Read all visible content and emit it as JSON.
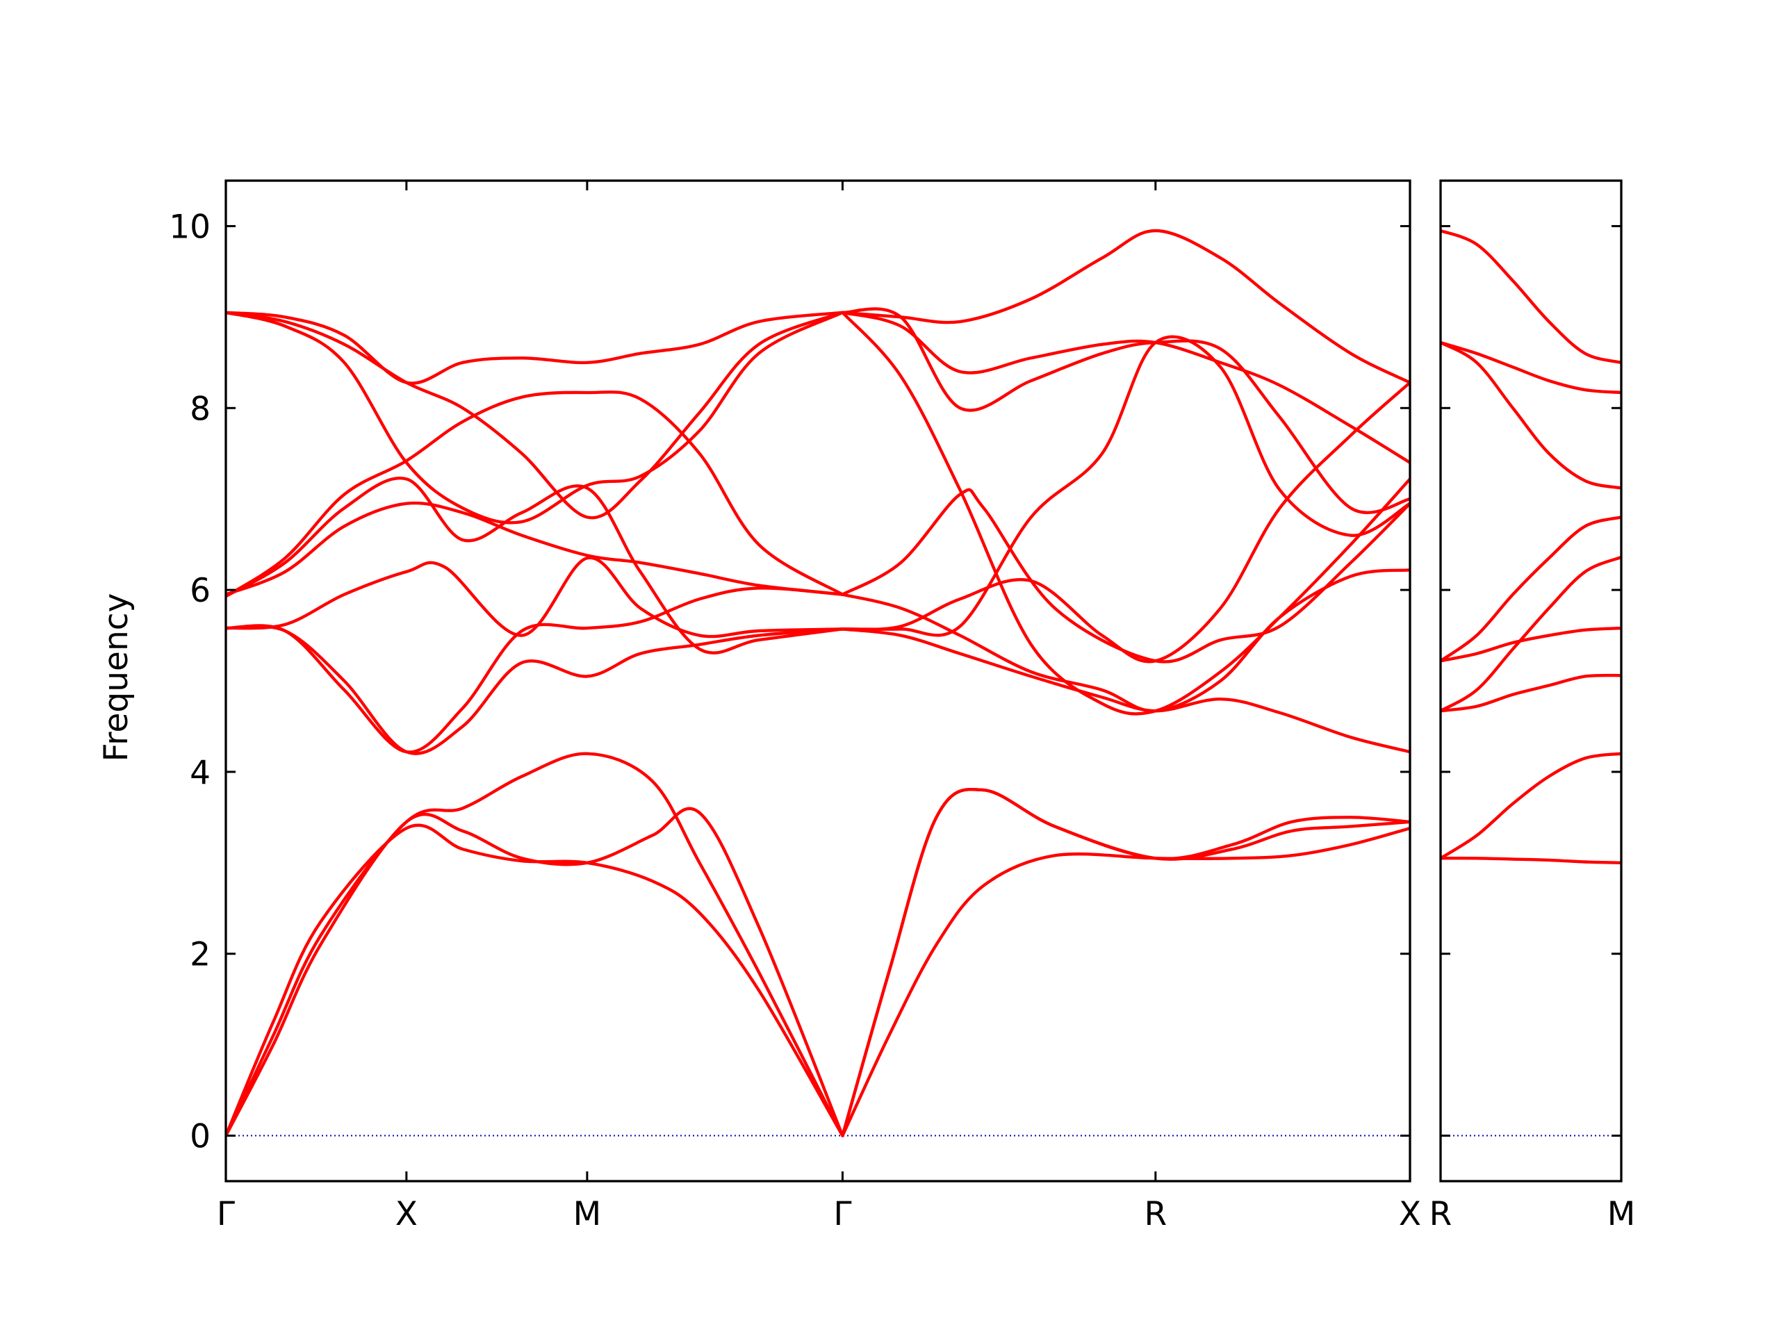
{
  "chart_data": {
    "type": "line",
    "ylabel": "Frequency",
    "ylim": [
      -0.5,
      10.5
    ],
    "yticks": [
      0,
      2,
      4,
      6,
      8,
      10
    ],
    "ytick_labels": [
      "0",
      "2",
      "4",
      "6",
      "8",
      "10"
    ],
    "grid": false,
    "colors": {
      "band": "#ff0000",
      "zero_line": "#0000bb"
    },
    "panels": [
      {
        "name": "main",
        "xlim": [
          0,
          1
        ],
        "ticks": [
          {
            "pos": 0.0,
            "label": "Γ"
          },
          {
            "pos": 0.1525,
            "label": "X"
          },
          {
            "pos": 0.3051,
            "label": "M"
          },
          {
            "pos": 0.5208,
            "label": "Γ"
          },
          {
            "pos": 0.7851,
            "label": "R"
          },
          {
            "pos": 1.0,
            "label": "X"
          }
        ],
        "series": [
          {
            "x": [
              0,
              0.04,
              0.08,
              0.1525,
              0.2,
              0.25,
              0.3051,
              0.36,
              0.4,
              0.45,
              0.5208
            ],
            "y": [
              0,
              1.25,
              2.35,
              3.38,
              3.15,
              3.02,
              3.0,
              2.8,
              2.45,
              1.6,
              0
            ]
          },
          {
            "x": [
              0,
              0.04,
              0.08,
              0.1525,
              0.2,
              0.25,
              0.3051,
              0.36,
              0.4,
              0.45,
              0.5208
            ],
            "y": [
              0,
              1.0,
              2.1,
              3.45,
              3.35,
              3.05,
              3.0,
              3.3,
              3.55,
              2.3,
              0
            ]
          },
          {
            "x": [
              0,
              0.04,
              0.08,
              0.1525,
              0.2,
              0.25,
              0.3051,
              0.36,
              0.4,
              0.45,
              0.5208
            ],
            "y": [
              0,
              1.1,
              2.2,
              3.45,
              3.6,
              3.95,
              4.2,
              3.9,
              3.0,
              1.8,
              0
            ]
          },
          {
            "x": [
              0.5208,
              0.56,
              0.6,
              0.64,
              0.7,
              0.7851,
              0.85,
              0.9,
              0.95,
              1.0
            ],
            "y": [
              0,
              1.1,
              2.1,
              2.75,
              3.08,
              3.05,
              3.05,
              3.08,
              3.2,
              3.38
            ]
          },
          {
            "x": [
              0.5208,
              0.56,
              0.6,
              0.64,
              0.7,
              0.7851,
              0.85,
              0.9,
              0.95,
              1.0
            ],
            "y": [
              0,
              1.8,
              3.5,
              3.8,
              3.4,
              3.05,
              3.15,
              3.35,
              3.4,
              3.45
            ]
          },
          {
            "x": [
              0.5208,
              0.56,
              0.6,
              0.64,
              0.7,
              0.7851,
              0.85,
              0.9,
              0.95,
              1.0
            ],
            "y": [
              0,
              1.8,
              3.5,
              3.8,
              3.4,
              3.05,
              3.2,
              3.45,
              3.5,
              3.45
            ]
          },
          {
            "x": [
              0,
              0.05,
              0.1,
              0.1525,
              0.2,
              0.25,
              0.3051,
              0.35,
              0.4,
              0.45,
              0.5208
            ],
            "y": [
              5.58,
              5.55,
              5.0,
              4.22,
              4.5,
              5.2,
              5.05,
              5.3,
              5.4,
              5.5,
              5.57
            ]
          },
          {
            "x": [
              0,
              0.05,
              0.1,
              0.1525,
              0.2,
              0.25,
              0.3051,
              0.35,
              0.4,
              0.45,
              0.5208
            ],
            "y": [
              5.58,
              5.55,
              4.9,
              4.22,
              4.7,
              5.55,
              5.58,
              5.65,
              5.9,
              6.02,
              5.95
            ]
          },
          {
            "x": [
              0,
              0.05,
              0.1,
              0.1525,
              0.185,
              0.25,
              0.3051,
              0.35,
              0.4,
              0.45,
              0.5208
            ],
            "y": [
              5.58,
              5.62,
              5.95,
              6.2,
              6.25,
              5.5,
              6.35,
              5.8,
              5.5,
              5.55,
              5.57
            ]
          },
          {
            "x": [
              0,
              0.05,
              0.1,
              0.1525,
              0.2,
              0.25,
              0.3051,
              0.35,
              0.4,
              0.45,
              0.5208
            ],
            "y": [
              5.95,
              6.2,
              6.7,
              6.95,
              6.85,
              6.6,
              6.38,
              6.3,
              6.18,
              6.05,
              5.95
            ]
          },
          {
            "x": [
              0,
              0.05,
              0.1,
              0.1525,
              0.2,
              0.25,
              0.3051,
              0.35,
              0.4,
              0.45,
              0.5208
            ],
            "y": [
              5.93,
              6.3,
              6.9,
              7.22,
              6.55,
              6.85,
              7.12,
              6.2,
              5.35,
              5.45,
              5.57
            ]
          },
          {
            "x": [
              0,
              0.05,
              0.1,
              0.1525,
              0.2,
              0.25,
              0.3051,
              0.35,
              0.4,
              0.45,
              0.5208
            ],
            "y": [
              5.93,
              6.35,
              7.05,
              7.42,
              7.85,
              8.12,
              8.17,
              8.1,
              7.5,
              6.5,
              5.95
            ]
          },
          {
            "x": [
              0,
              0.05,
              0.1,
              0.1525,
              0.2,
              0.25,
              0.3051,
              0.35,
              0.4,
              0.45,
              0.5208
            ],
            "y": [
              9.05,
              8.95,
              8.7,
              8.28,
              8.0,
              7.5,
              6.8,
              7.2,
              7.95,
              8.7,
              9.05
            ]
          },
          {
            "x": [
              0,
              0.05,
              0.1,
              0.1525,
              0.2,
              0.25,
              0.3051,
              0.35,
              0.4,
              0.45,
              0.5208
            ],
            "y": [
              9.05,
              8.9,
              8.5,
              7.4,
              6.9,
              6.75,
              7.15,
              7.25,
              7.75,
              8.6,
              9.05
            ]
          },
          {
            "x": [
              0,
              0.05,
              0.1,
              0.1525,
              0.2,
              0.25,
              0.3051,
              0.35,
              0.4,
              0.45,
              0.5208
            ],
            "y": [
              9.05,
              9.0,
              8.8,
              8.28,
              8.5,
              8.55,
              8.5,
              8.6,
              8.7,
              8.95,
              9.05
            ]
          },
          {
            "x": [
              0.5208,
              0.57,
              0.62,
              0.68,
              0.74,
              0.7851,
              0.84,
              0.89,
              0.95,
              1.0
            ],
            "y": [
              5.57,
              5.5,
              5.3,
              5.05,
              4.82,
              4.67,
              4.8,
              4.65,
              4.38,
              4.22
            ]
          },
          {
            "x": [
              0.5208,
              0.57,
              0.62,
              0.68,
              0.74,
              0.7851,
              0.84,
              0.89,
              0.95,
              1.0
            ],
            "y": [
              5.95,
              5.8,
              5.5,
              5.1,
              4.9,
              4.67,
              5.0,
              5.7,
              6.15,
              6.22
            ]
          },
          {
            "x": [
              0.5208,
              0.57,
              0.62,
              0.68,
              0.74,
              0.7851,
              0.84,
              0.89,
              0.95,
              1.0
            ],
            "y": [
              5.57,
              5.57,
              5.6,
              6.8,
              7.5,
              8.72,
              8.45,
              7.1,
              6.6,
              6.95
            ]
          },
          {
            "x": [
              0.5208,
              0.57,
              0.62,
              0.64,
              0.7,
              0.7851,
              0.84,
              0.89,
              0.95,
              1.0
            ],
            "y": [
              5.95,
              6.3,
              7.05,
              6.9,
              5.8,
              5.22,
              5.45,
              5.6,
              6.3,
              6.95
            ]
          },
          {
            "x": [
              0.5208,
              0.57,
              0.62,
              0.68,
              0.74,
              0.7851,
              0.84,
              0.89,
              0.95,
              1.0
            ],
            "y": [
              9.05,
              8.35,
              7.1,
              5.4,
              4.75,
              4.67,
              5.1,
              5.7,
              6.5,
              7.22
            ]
          },
          {
            "x": [
              0.5208,
              0.57,
              0.62,
              0.68,
              0.74,
              0.7851,
              0.84,
              0.89,
              0.95,
              1.0
            ],
            "y": [
              9.05,
              9.0,
              8.0,
              8.3,
              8.6,
              8.72,
              8.65,
              7.9,
              6.9,
              7.0
            ]
          },
          {
            "x": [
              0.5208,
              0.57,
              0.62,
              0.68,
              0.74,
              0.7851,
              0.84,
              0.89,
              0.95,
              1.0
            ],
            "y": [
              9.05,
              9.0,
              8.95,
              9.2,
              9.65,
              9.95,
              9.65,
              9.15,
              8.6,
              8.28
            ]
          },
          {
            "x": [
              0.5208,
              0.57,
              0.62,
              0.68,
              0.74,
              0.7851,
              0.84,
              0.89,
              0.95,
              1.0
            ],
            "y": [
              5.57,
              5.6,
              5.9,
              6.1,
              5.5,
              5.22,
              5.8,
              6.9,
              7.7,
              8.28
            ]
          },
          {
            "x": [
              0.5208,
              0.57,
              0.62,
              0.68,
              0.74,
              0.7851,
              0.84,
              0.89,
              0.95,
              1.0
            ],
            "y": [
              9.05,
              8.9,
              8.4,
              8.55,
              8.7,
              8.72,
              8.5,
              8.25,
              7.8,
              7.4
            ]
          }
        ]
      },
      {
        "name": "side",
        "xlim": [
          0,
          1
        ],
        "ticks": [
          {
            "pos": 0.0,
            "label": "R"
          },
          {
            "pos": 1.0,
            "label": "M"
          }
        ],
        "series": [
          {
            "x": [
              0,
              0.2,
              0.4,
              0.6,
              0.8,
              1.0
            ],
            "y": [
              3.05,
              3.05,
              3.04,
              3.03,
              3.01,
              3.0
            ]
          },
          {
            "x": [
              0,
              0.2,
              0.4,
              0.6,
              0.8,
              1.0
            ],
            "y": [
              3.05,
              3.3,
              3.65,
              3.95,
              4.15,
              4.2
            ]
          },
          {
            "x": [
              0,
              0.2,
              0.4,
              0.6,
              0.8,
              1.0
            ],
            "y": [
              4.67,
              4.72,
              4.85,
              4.95,
              5.05,
              5.06
            ]
          },
          {
            "x": [
              0,
              0.2,
              0.4,
              0.6,
              0.8,
              1.0
            ],
            "y": [
              4.67,
              4.9,
              5.35,
              5.8,
              6.2,
              6.36
            ]
          },
          {
            "x": [
              0,
              0.2,
              0.4,
              0.6,
              0.8,
              1.0
            ],
            "y": [
              5.22,
              5.3,
              5.42,
              5.5,
              5.56,
              5.58
            ]
          },
          {
            "x": [
              0,
              0.2,
              0.4,
              0.6,
              0.8,
              1.0
            ],
            "y": [
              5.22,
              5.5,
              5.95,
              6.35,
              6.7,
              6.8
            ]
          },
          {
            "x": [
              0,
              0.2,
              0.4,
              0.6,
              0.8,
              1.0
            ],
            "y": [
              8.72,
              8.5,
              8.0,
              7.5,
              7.2,
              7.12
            ]
          },
          {
            "x": [
              0,
              0.2,
              0.4,
              0.6,
              0.8,
              1.0
            ],
            "y": [
              8.72,
              8.6,
              8.45,
              8.3,
              8.2,
              8.17
            ]
          },
          {
            "x": [
              0,
              0.2,
              0.4,
              0.6,
              0.8,
              1.0
            ],
            "y": [
              9.95,
              9.8,
              9.4,
              8.95,
              8.6,
              8.5
            ]
          }
        ]
      }
    ]
  }
}
